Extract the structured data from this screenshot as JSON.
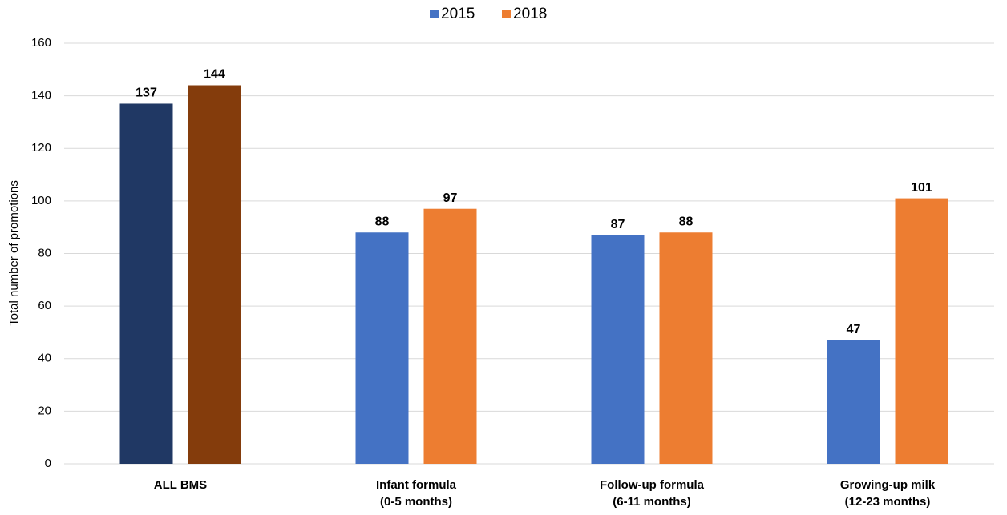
{
  "chart_data": {
    "type": "bar",
    "y_label": "Total number of promotions",
    "categories": [
      [
        "ALL BMS"
      ],
      [
        "Infant formula",
        "(0-5 months)"
      ],
      [
        "Follow-up formula",
        "(6-11 months)"
      ],
      [
        "Growing-up milk",
        "(12-23 months)"
      ]
    ],
    "series": [
      {
        "name": "2015",
        "color": "#4472c4",
        "colors": [
          "#203864",
          "#4472c4",
          "#4472c4",
          "#4472c4"
        ],
        "values": [
          137,
          88,
          87,
          47
        ]
      },
      {
        "name": "2018",
        "color": "#ed7d31",
        "colors": [
          "#843c0c",
          "#ed7d31",
          "#ed7d31",
          "#ed7d31"
        ],
        "values": [
          144,
          97,
          88,
          101
        ]
      }
    ],
    "ylim": [
      0,
      160
    ],
    "yticks": [
      0,
      20,
      40,
      60,
      80,
      100,
      120,
      140,
      160
    ],
    "grid": true,
    "legend": "top"
  }
}
